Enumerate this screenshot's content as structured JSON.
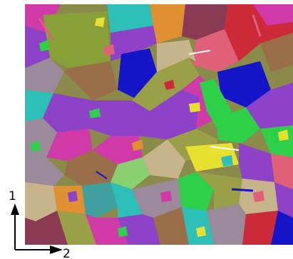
{
  "figure": {
    "axis_labels": {
      "vertical": "1",
      "horizontal": "2"
    }
  },
  "palette": {
    "white": "#ffffff",
    "black": "#000000",
    "base": "#8a8a4a",
    "blue": "#1414c8",
    "green": "#2ed04a",
    "magenta": "#d03aa8",
    "olive": "#9aa048",
    "purple": "#8e42c8",
    "pink": "#e0607a",
    "cyan": "#2cc0b8",
    "tan": "#c8b48a",
    "grey": "#9a8a9a",
    "yellow": "#e8e030",
    "orange": "#e09030",
    "red": "#cc2a38",
    "brown": "#9a6e48",
    "maroon": "#8a3a52",
    "lightgreen": "#88d070",
    "teal": "#40a0a0"
  }
}
